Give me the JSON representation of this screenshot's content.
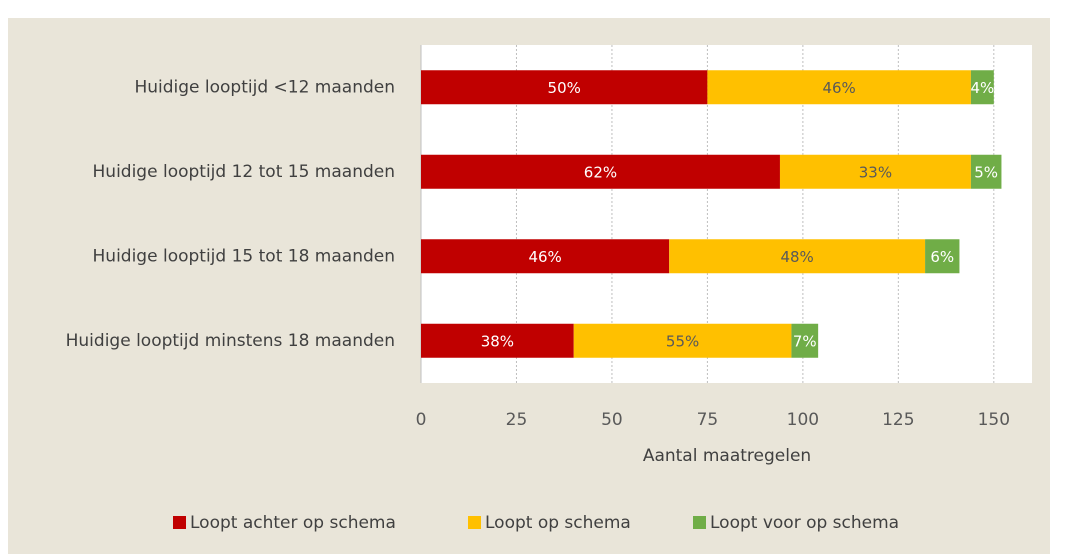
{
  "chart_data": {
    "type": "stacked-barh",
    "x_label": "Aantal maatregelen",
    "categories": [
      "Huidige looptijd <12 maanden",
      "Huidige looptijd 12 tot 15 maanden",
      "Huidige looptijd 15 tot 18 maanden",
      "Huidige looptijd minstens 18 maanden"
    ],
    "series": [
      {
        "name": "Loopt achter op schema",
        "color": "#c00000",
        "values": [
          75,
          94,
          65,
          40
        ],
        "labels": [
          "50%",
          "62%",
          "46%",
          "38%"
        ]
      },
      {
        "name": "Loopt op schema",
        "color": "#ffc000",
        "values": [
          69,
          50,
          67,
          57
        ],
        "labels": [
          "46%",
          "33%",
          "48%",
          "55%"
        ]
      },
      {
        "name": "Loopt voor op schema",
        "color": "#70ad47",
        "values": [
          6,
          8,
          9,
          7
        ],
        "labels": [
          "4%",
          "5%",
          "6%",
          "7%"
        ]
      }
    ],
    "xlim": [
      0,
      160
    ],
    "xticks": [
      0,
      25,
      50,
      75,
      100,
      125,
      150
    ],
    "grid": true,
    "legend": "bottom"
  }
}
